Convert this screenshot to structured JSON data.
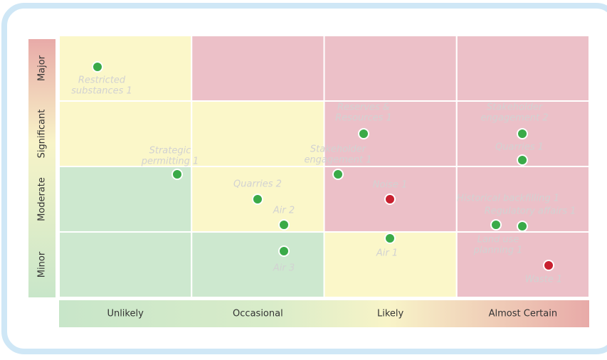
{
  "y_axis": [
    "Major",
    "Significant",
    "Moderate",
    "Minor"
  ],
  "x_axis": [
    "Unlikely",
    "Occasional",
    "Likely",
    "Almost Certain"
  ],
  "risks": [
    {
      "label": [
        "Restricted",
        "substances 1"
      ],
      "color": "#3aaa48"
    },
    {
      "label": [
        "Strategic",
        "permitting 1"
      ],
      "color": "#3aaa48"
    },
    {
      "label": [
        "Quarries 2"
      ],
      "color": "#3aaa48"
    },
    {
      "label": [
        "Air 2"
      ],
      "color": "#3aaa48"
    },
    {
      "label": [
        "Air 3"
      ],
      "color": "#3aaa48"
    },
    {
      "label": [
        "Stakeholder",
        "engagement 1"
      ],
      "color": "#3aaa48"
    },
    {
      "label": [
        "Reserves &",
        "Resources 1"
      ],
      "color": "#3aaa48"
    },
    {
      "label": [
        "Noise 1"
      ],
      "color": "#c8202f"
    },
    {
      "label": [
        "Air 1"
      ],
      "color": "#3aaa48"
    },
    {
      "label": [
        "Stakeholder",
        "engagement  2"
      ],
      "color": "#3aaa48"
    },
    {
      "label": [
        "Quarries 1"
      ],
      "color": "#3aaa48"
    },
    {
      "label": [
        "Historical backfilling 1"
      ],
      "color": "#3aaa48"
    },
    {
      "label": [
        "Regulatory affairs 1"
      ],
      "color": "#3aaa48"
    },
    {
      "label": [
        "Land use",
        "planning 1"
      ],
      "color": "#3aaa48"
    },
    {
      "label": [
        "Waste 1"
      ],
      "color": "#c8202f"
    }
  ]
}
